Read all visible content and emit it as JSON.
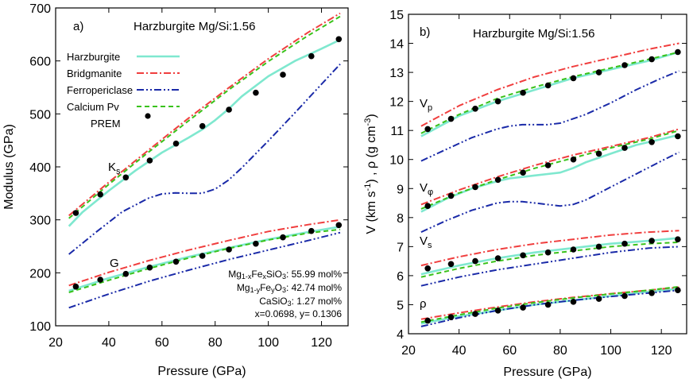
{
  "chart_data": [
    {
      "type": "line",
      "panel_label": "a)",
      "title": "Harzburgite Mg/Si:1.56",
      "xlabel": "Pressure (GPa)",
      "ylabel": "Modulus (GPa)",
      "xlim": [
        20,
        130
      ],
      "ylim": [
        100,
        700
      ],
      "xticks": [
        20,
        40,
        60,
        80,
        100,
        120
      ],
      "yticks": [
        100,
        200,
        300,
        400,
        500,
        600,
        700
      ],
      "grid": false,
      "legend_position": "top-left",
      "legend": [
        "Harzburgite",
        "Bridgmanite",
        "Ferropericlase",
        "Calcium Pv",
        "PREM"
      ],
      "annotations": {
        "ks_label_main": "K",
        "ks_label_sub": "s",
        "g_label": "G",
        "comp_mg1": "Mg",
        "comp_mg1_sub": "1-x",
        "comp_fe1": "Fe",
        "comp_fe1_sub": "x",
        "comp_sio3": "SiO",
        "comp_sio3_sub": "3",
        "comp_val1": ": 55.99 mol%",
        "comp_mg2": "Mg",
        "comp_mg2_sub": "1-y",
        "comp_fe2": "Fe",
        "comp_fe2_sub": "y",
        "comp_o3": "O",
        "comp_o3_sub": "3",
        "comp_val2": ": 42.74 mol%",
        "comp_ca": "CaSiO",
        "comp_ca_sub": "3",
        "comp_val3": ":    1.27 mol%",
        "comp_xy": "x=0.0698, y= 0.1306"
      },
      "series": [
        {
          "name": "Harzburgite",
          "group": "Ks",
          "x": [
            25,
            30,
            40,
            50,
            60,
            70,
            75,
            80,
            85,
            90,
            100,
            110,
            120,
            127
          ],
          "y": [
            288,
            314,
            355,
            393,
            427,
            455,
            470,
            488,
            509,
            533,
            571,
            600,
            623,
            640
          ]
        },
        {
          "name": "Bridgmanite",
          "group": "Ks",
          "x": [
            25,
            40,
            55,
            70,
            85,
            100,
            115,
            127
          ],
          "y": [
            308,
            371,
            432,
            492,
            549,
            604,
            654,
            690
          ]
        },
        {
          "name": "Ferropericlase",
          "group": "Ks",
          "x": [
            25,
            35,
            45,
            55,
            60,
            65,
            70,
            75,
            80,
            85,
            90,
            100,
            110,
            120,
            127
          ],
          "y": [
            235,
            276,
            315,
            341,
            349,
            351,
            350,
            350,
            358,
            375,
            398,
            449,
            502,
            556,
            594
          ]
        },
        {
          "name": "Calcium Pv",
          "group": "Ks",
          "x": [
            25,
            40,
            55,
            70,
            85,
            100,
            115,
            127
          ],
          "y": [
            303,
            367,
            428,
            487,
            545,
            599,
            648,
            684
          ]
        },
        {
          "name": "Harzburgite",
          "group": "G",
          "x": [
            25,
            40,
            55,
            70,
            85,
            100,
            115,
            127
          ],
          "y": [
            166,
            190,
            211,
            230,
            247,
            263,
            277,
            287
          ]
        },
        {
          "name": "Bridgmanite",
          "group": "G",
          "x": [
            25,
            40,
            55,
            70,
            85,
            100,
            115,
            127
          ],
          "y": [
            176,
            201,
            223,
            243,
            261,
            278,
            291,
            300
          ]
        },
        {
          "name": "Ferropericlase",
          "group": "G",
          "x": [
            25,
            40,
            55,
            70,
            85,
            100,
            115,
            127
          ],
          "y": [
            134,
            160,
            184,
            205,
            225,
            243,
            261,
            276
          ]
        },
        {
          "name": "Calcium Pv",
          "group": "G",
          "x": [
            25,
            40,
            55,
            70,
            85,
            100,
            115,
            127
          ],
          "y": [
            163,
            186,
            208,
            228,
            246,
            262,
            275,
            282
          ]
        },
        {
          "name": "PREM",
          "group": "Ks",
          "marker": "dot",
          "x": [
            27.6,
            36.8,
            46.4,
            55.4,
            65.3,
            75.2,
            85.2,
            95.3,
            105.5,
            116.2,
            126.5
          ],
          "y": [
            313,
            348,
            380,
            412,
            444,
            477,
            508,
            540,
            574,
            609,
            641
          ]
        },
        {
          "name": "PREM",
          "group": "G",
          "marker": "dot",
          "x": [
            27.6,
            36.8,
            46.4,
            55.4,
            65.3,
            75.2,
            85.2,
            95.3,
            105.5,
            116.2,
            126.5
          ],
          "y": [
            174,
            187,
            198,
            210,
            221,
            232,
            244,
            255,
            267,
            279,
            290
          ]
        }
      ]
    },
    {
      "type": "line",
      "panel_label": "b)",
      "title": "Harzburgite Mg/Si:1.56",
      "xlabel": "Pressure (GPa)",
      "ylabel_prefix": "V (km s",
      "ylabel_exp1": "-1",
      "ylabel_mid": ") , ρ (g cm",
      "ylabel_exp2": "-3",
      "ylabel_suffix": ")",
      "xlim": [
        20,
        130
      ],
      "ylim": [
        4,
        15
      ],
      "xticks": [
        20,
        40,
        60,
        80,
        100,
        120
      ],
      "yticks": [
        4,
        5,
        6,
        7,
        8,
        9,
        10,
        11,
        12,
        13,
        14,
        15
      ],
      "grid": false,
      "annotations": {
        "vp_main": "V",
        "vp_sub": "p",
        "vphi_main": "V",
        "vphi_sub": "φ",
        "vs_main": "V",
        "vs_sub": "s",
        "rho": "ρ"
      },
      "series": [
        {
          "name": "Harzburgite",
          "group": "Vp",
          "x": [
            25,
            40,
            55,
            70,
            85,
            100,
            115,
            127
          ],
          "y": [
            10.8,
            11.5,
            12.0,
            12.4,
            12.8,
            13.1,
            13.4,
            13.7
          ]
        },
        {
          "name": "Bridgmanite",
          "group": "Vp",
          "x": [
            25,
            40,
            55,
            70,
            85,
            100,
            115,
            127
          ],
          "y": [
            11.15,
            11.85,
            12.4,
            12.85,
            13.2,
            13.5,
            13.8,
            14.0
          ]
        },
        {
          "name": "Ferropericlase",
          "group": "Vp",
          "x": [
            25,
            35,
            45,
            55,
            60,
            65,
            70,
            75,
            80,
            85,
            90,
            100,
            110,
            120,
            127
          ],
          "y": [
            9.95,
            10.35,
            10.75,
            11.05,
            11.15,
            11.2,
            11.2,
            11.2,
            11.25,
            11.4,
            11.55,
            11.95,
            12.4,
            12.8,
            13.05
          ]
        },
        {
          "name": "Calcium Pv",
          "group": "Vp",
          "x": [
            25,
            40,
            55,
            70,
            85,
            100,
            115,
            127
          ],
          "y": [
            10.9,
            11.55,
            12.1,
            12.5,
            12.85,
            13.15,
            13.45,
            13.7
          ]
        },
        {
          "name": "Harzburgite",
          "group": "Vphi",
          "x": [
            25,
            35,
            45,
            55,
            60,
            65,
            70,
            75,
            80,
            85,
            90,
            100,
            110,
            120,
            127
          ],
          "y": [
            8.2,
            8.65,
            9.0,
            9.25,
            9.35,
            9.4,
            9.45,
            9.5,
            9.55,
            9.7,
            9.9,
            10.2,
            10.5,
            10.7,
            10.85
          ]
        },
        {
          "name": "Bridgmanite",
          "group": "Vphi",
          "x": [
            25,
            40,
            55,
            70,
            85,
            100,
            115,
            127
          ],
          "y": [
            8.45,
            8.95,
            9.4,
            9.8,
            10.15,
            10.45,
            10.75,
            11.05
          ]
        },
        {
          "name": "Ferropericlase",
          "group": "Vphi",
          "x": [
            25,
            35,
            45,
            55,
            60,
            65,
            70,
            75,
            80,
            85,
            90,
            100,
            110,
            120,
            127
          ],
          "y": [
            7.5,
            7.9,
            8.25,
            8.5,
            8.55,
            8.55,
            8.5,
            8.45,
            8.4,
            8.45,
            8.6,
            9.05,
            9.5,
            9.95,
            10.25
          ]
        },
        {
          "name": "Calcium Pv",
          "group": "Vphi",
          "x": [
            25,
            40,
            55,
            70,
            85,
            100,
            115,
            127
          ],
          "y": [
            8.3,
            8.85,
            9.3,
            9.7,
            10.05,
            10.4,
            10.7,
            11.0
          ]
        },
        {
          "name": "Harzburgite",
          "group": "Vs",
          "x": [
            25,
            40,
            55,
            70,
            85,
            100,
            115,
            127
          ],
          "y": [
            6.05,
            6.35,
            6.6,
            6.8,
            6.95,
            7.1,
            7.2,
            7.3
          ]
        },
        {
          "name": "Bridgmanite",
          "group": "Vs",
          "x": [
            25,
            40,
            55,
            70,
            85,
            100,
            115,
            127
          ],
          "y": [
            6.35,
            6.65,
            6.9,
            7.1,
            7.25,
            7.4,
            7.5,
            7.55
          ]
        },
        {
          "name": "Ferropericlase",
          "group": "Vs",
          "x": [
            25,
            40,
            55,
            70,
            85,
            100,
            115,
            127
          ],
          "y": [
            5.65,
            5.95,
            6.2,
            6.4,
            6.6,
            6.8,
            6.95,
            7.0
          ]
        },
        {
          "name": "Calcium Pv",
          "group": "Vs",
          "x": [
            25,
            40,
            55,
            70,
            85,
            100,
            115,
            127
          ],
          "y": [
            5.95,
            6.25,
            6.5,
            6.7,
            6.85,
            7.0,
            7.1,
            7.15
          ]
        },
        {
          "name": "Harzburgite",
          "group": "rho",
          "x": [
            25,
            40,
            55,
            70,
            85,
            100,
            115,
            127
          ],
          "y": [
            4.35,
            4.6,
            4.8,
            5.0,
            5.15,
            5.3,
            5.45,
            5.55
          ]
        },
        {
          "name": "Bridgmanite",
          "group": "rho",
          "x": [
            25,
            40,
            55,
            70,
            85,
            100,
            115,
            127
          ],
          "y": [
            4.5,
            4.72,
            4.92,
            5.1,
            5.25,
            5.38,
            5.5,
            5.6
          ]
        },
        {
          "name": "Ferropericlase",
          "group": "rho",
          "x": [
            25,
            40,
            55,
            70,
            85,
            100,
            115,
            127
          ],
          "y": [
            4.25,
            4.55,
            4.8,
            5.0,
            5.15,
            5.28,
            5.4,
            5.5
          ]
        },
        {
          "name": "Calcium Pv",
          "group": "rho",
          "x": [
            25,
            40,
            55,
            70,
            85,
            100,
            115,
            127
          ],
          "y": [
            4.4,
            4.65,
            4.88,
            5.07,
            5.23,
            5.37,
            5.5,
            5.62
          ]
        },
        {
          "name": "PREM",
          "group": "Vp",
          "marker": "dot",
          "x": [
            27.6,
            36.8,
            46.4,
            55.4,
            65.3,
            75.2,
            85.2,
            95.3,
            105.5,
            116.2,
            126.5
          ],
          "y": [
            11.05,
            11.4,
            11.75,
            12.0,
            12.3,
            12.55,
            12.8,
            13.0,
            13.25,
            13.45,
            13.7
          ]
        },
        {
          "name": "PREM",
          "group": "Vphi",
          "marker": "dot",
          "x": [
            27.6,
            36.8,
            46.4,
            55.4,
            65.3,
            75.2,
            85.2,
            95.3,
            105.5,
            116.2,
            126.5
          ],
          "y": [
            8.4,
            8.75,
            9.05,
            9.3,
            9.55,
            9.8,
            10.0,
            10.2,
            10.4,
            10.6,
            10.8
          ]
        },
        {
          "name": "PREM",
          "group": "Vs",
          "marker": "dot",
          "x": [
            27.6,
            36.8,
            46.4,
            55.4,
            65.3,
            75.2,
            85.2,
            95.3,
            105.5,
            116.2,
            126.5
          ],
          "y": [
            6.25,
            6.4,
            6.5,
            6.6,
            6.7,
            6.8,
            6.9,
            7.0,
            7.1,
            7.2,
            7.25
          ]
        },
        {
          "name": "PREM",
          "group": "rho",
          "marker": "dot",
          "x": [
            27.6,
            36.8,
            46.4,
            55.4,
            65.3,
            75.2,
            85.2,
            95.3,
            105.5,
            116.2,
            126.5
          ],
          "y": [
            4.45,
            4.57,
            4.68,
            4.8,
            4.9,
            5.0,
            5.1,
            5.2,
            5.3,
            5.4,
            5.5
          ]
        }
      ]
    }
  ],
  "series_styles": {
    "Harzburgite": {
      "color": "#7fe8cf",
      "dash": ""
    },
    "Bridgmanite": {
      "color": "#f03e3e",
      "dash": "9,3,2,3"
    },
    "Ferropericlase": {
      "color": "#1a2aa8",
      "dash": "9,3,2,3,2,3"
    },
    "Calcium Pv": {
      "color": "#39c21a",
      "dash": "6,4"
    },
    "PREM": {
      "color": "#000000",
      "dash": ""
    }
  }
}
